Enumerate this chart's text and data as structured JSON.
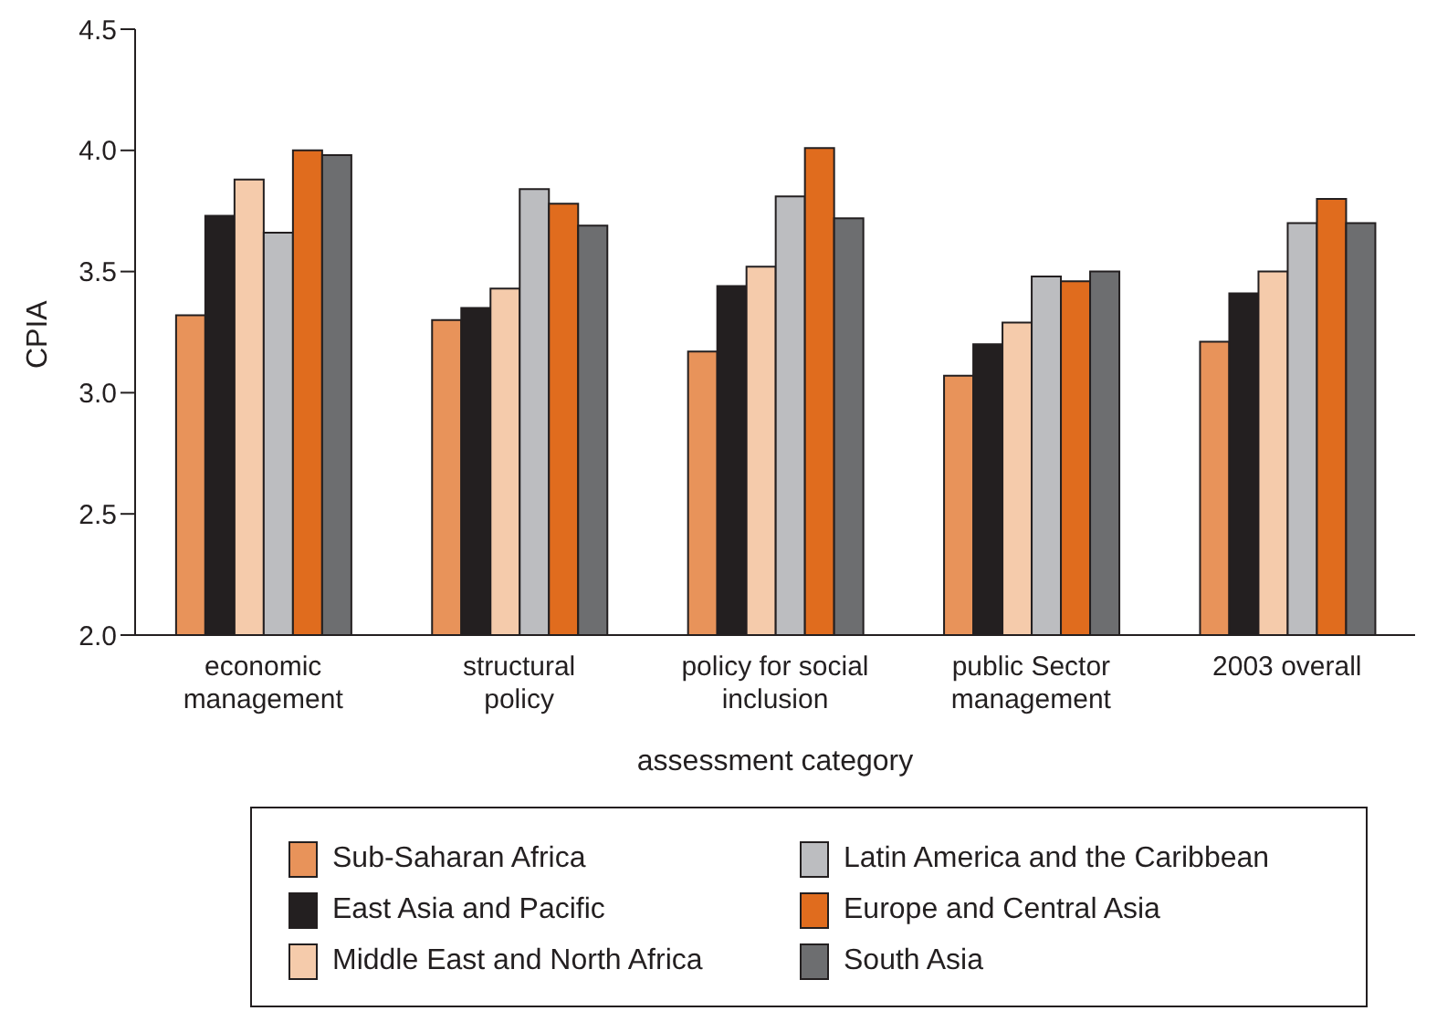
{
  "chart_data": {
    "type": "bar",
    "xlabel": "assessment category",
    "ylabel": "CPIA",
    "categories": [
      "economic management",
      "structural policy",
      "policy for social inclusion",
      "public Sector management",
      "2003 overall"
    ],
    "series": [
      {
        "name": "Sub-Saharan Africa",
        "color": "#e8935a",
        "values": [
          3.32,
          3.3,
          3.17,
          3.07,
          3.21
        ]
      },
      {
        "name": "East Asia and Pacific",
        "color": "#231f20",
        "values": [
          3.73,
          3.35,
          3.44,
          3.2,
          3.41
        ]
      },
      {
        "name": "Middle East and North Africa",
        "color": "#f5cbab",
        "values": [
          3.88,
          3.43,
          3.52,
          3.29,
          3.5
        ]
      },
      {
        "name": "Latin America and the Caribbean",
        "color": "#bcbdc0",
        "values": [
          3.66,
          3.84,
          3.81,
          3.48,
          3.7
        ]
      },
      {
        "name": "Europe and Central Asia",
        "color": "#e06c1e",
        "values": [
          4.0,
          3.78,
          4.01,
          3.46,
          3.8
        ]
      },
      {
        "name": "South Asia",
        "color": "#6d6e70",
        "values": [
          3.98,
          3.69,
          3.72,
          3.5,
          3.7
        ]
      }
    ],
    "ylim": [
      2.0,
      4.5
    ],
    "yticks": [
      {
        "value": 2.0,
        "label": "2.0"
      },
      {
        "value": 2.5,
        "label": "2.5"
      },
      {
        "value": 3.0,
        "label": "3.0"
      },
      {
        "value": 3.5,
        "label": "3.5"
      },
      {
        "value": 4.0,
        "label": "4.0"
      },
      {
        "value": 4.5,
        "label": "4.5"
      }
    ],
    "grid": false,
    "legend": "bottom"
  }
}
